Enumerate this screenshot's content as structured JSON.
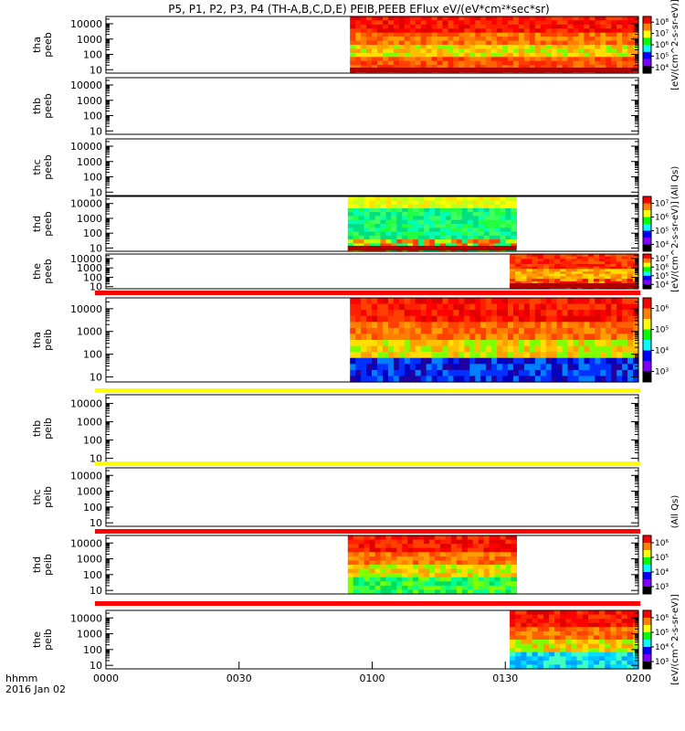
{
  "title": "P5, P1, P2, P3, P4 (TH-A,B,C,D,E) PEIB,PEEB EFlux eV/(eV*cm²*sec*sr)",
  "chart_data": {
    "type": "heatmap",
    "x_axis": {
      "ticks": [
        "0000",
        "0030",
        "0100",
        "0130",
        "0200"
      ],
      "range_minutes": [
        0,
        120
      ],
      "label_lines": [
        "hhmm",
        "2016 Jan 02"
      ]
    },
    "y_axis": {
      "scale": "log",
      "range": [
        6,
        30000
      ],
      "ticks": [
        "10",
        "100",
        "1000",
        "10000"
      ]
    },
    "panels": [
      {
        "id": "tha_peeb",
        "label": [
          "tha",
          "peeb"
        ],
        "data_start": 55,
        "data_end": 120,
        "base": "red",
        "lowband": "red",
        "colorbar": {
          "labels": [
            "10⁸",
            "10⁷",
            "10⁶",
            "10⁵",
            "10⁴"
          ],
          "title": "eV/(cm^2-s-sr-eV)"
        }
      },
      {
        "id": "thb_peeb",
        "label": [
          "thb",
          "peeb"
        ],
        "data_start": null,
        "data_end": null,
        "colorbar": null
      },
      {
        "id": "thc_peeb",
        "label": [
          "thc",
          "peeb"
        ],
        "data_start": null,
        "data_end": null,
        "colorbar": null
      },
      {
        "id": "thd_peeb",
        "label": [
          "thd",
          "peeb"
        ],
        "data_start": 54.5,
        "data_end": 92.5,
        "base": "green",
        "lowband": "red",
        "colorbar": {
          "labels": [
            "10⁷",
            "10⁶",
            "10⁵",
            "10⁴"
          ],
          "title": "eV/(cm^2-s-sr-eV)"
        }
      },
      {
        "id": "the_peeb",
        "label": [
          "the",
          "peeb"
        ],
        "data_start": 91,
        "data_end": 120,
        "base": "orange",
        "lowband": "red",
        "colorbar": {
          "labels": [
            "10⁷",
            "10⁶",
            "10⁵",
            "10⁴"
          ],
          "title": "eV/(cm^2-s-sr-eV)"
        }
      },
      {
        "id": "tha_peib",
        "label": [
          "tha",
          "peib"
        ],
        "data_start": 55,
        "data_end": 120,
        "base": "red",
        "lowband": "blue",
        "colorbar": {
          "labels": [
            "10⁶",
            "10⁵",
            "10⁴",
            "10³"
          ],
          "title": "eV/(cm^2-s-sr-eV)"
        }
      },
      {
        "id": "thb_peib",
        "label": [
          "thb",
          "peib"
        ],
        "data_start": null,
        "data_end": null,
        "colorbar": null
      },
      {
        "id": "thc_peib",
        "label": [
          "thc",
          "peib"
        ],
        "data_start": null,
        "data_end": null,
        "colorbar": null
      },
      {
        "id": "thd_peib",
        "label": [
          "thd",
          "peib"
        ],
        "data_start": 54.5,
        "data_end": 92.5,
        "base": "red",
        "lowband": "green",
        "colorbar": {
          "labels": [
            "10⁶",
            "10⁵",
            "10⁴",
            "10³"
          ],
          "title": "eV/(cm^2-s-sr-eV)"
        }
      },
      {
        "id": "the_peib",
        "label": [
          "the",
          "peib"
        ],
        "data_start": 91,
        "data_end": 120,
        "base": "red",
        "lowband": "cyan",
        "colorbar": {
          "labels": [
            "10⁶",
            "10⁵",
            "10⁴",
            "10³"
          ],
          "title": "eV/(cm^2-s-sr-eV)"
        }
      }
    ],
    "separator_bars": [
      {
        "after_panel": "the_peeb",
        "color": "#ff0000"
      },
      {
        "after_panel": "tha_peib",
        "color": "#ffff00"
      },
      {
        "after_panel": "thb_peib",
        "color": "#ffff00"
      },
      {
        "after_panel": "thc_peib",
        "color": "#ff0000"
      },
      {
        "after_panel": "thd_peib",
        "color": "#ff0000"
      }
    ],
    "right_labels": [
      "[eV/(cm^2-s-sr-eV)]",
      "(All Qs)",
      "[eV/(cm^2-s-sr-eV)]",
      "(All Qs)",
      "[eV/(cm^2-s-sr-eV)]"
    ]
  }
}
